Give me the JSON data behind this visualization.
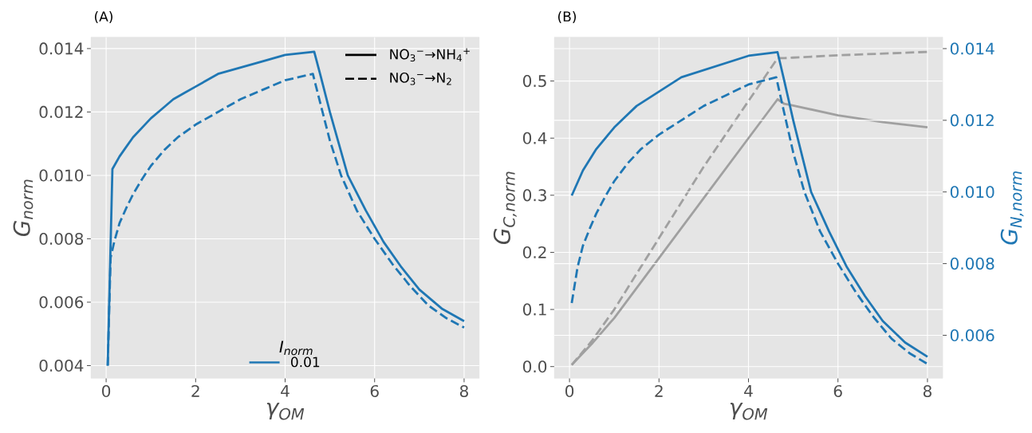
{
  "chart_data": [
    {
      "type": "line",
      "title": "(A)",
      "xlabel": "γ$_{OM}$",
      "ylabel": "G$_{norm}$",
      "xlim": [
        -0.34,
        8.34
      ],
      "ylim": [
        0.0036,
        0.01436
      ],
      "xticks": [
        0,
        2,
        4,
        6,
        8
      ],
      "yticks": [
        0.004,
        0.006,
        0.008,
        {
          "value": 0.01,
          "label": "0.010"
        },
        0.012,
        0.014
      ],
      "grid": true,
      "legend": "bottom",
      "legend_title": "I$_{norm}$",
      "annotations": [
        "NO$_{3}$$^{−}$→NH$_{4}$$^{+}$",
        "NO$_{3}$$^{−}$→N$_{2}$"
      ],
      "series": [
        {
          "name": "0.01",
          "color": "#1f77b4",
          "line_style": "solid",
          "x": [
            0.035,
            0.14,
            0.3,
            0.45,
            0.6,
            0.8,
            1.0,
            1.25,
            1.5,
            1.75,
            2.0,
            2.5,
            3.0,
            3.5,
            4.0,
            4.65,
            4.8,
            5.0,
            5.2,
            5.4,
            5.8,
            6.2,
            6.6,
            7.0,
            7.5,
            8.0
          ],
          "values": [
            0.004,
            0.0102,
            0.0106,
            0.0109,
            0.0112,
            0.0115,
            0.0118,
            0.0121,
            0.0124,
            0.0126,
            0.0128,
            0.0132,
            0.0134,
            0.0136,
            0.0138,
            0.0139,
            0.0131,
            0.012,
            0.011,
            0.01,
            0.0089,
            0.0079,
            0.0071,
            0.0064,
            0.0058,
            0.0054
          ]
        },
        {
          "color": "#1f77b4",
          "line_style": "dashed",
          "x": [
            0.035,
            0.1,
            0.18,
            0.3,
            0.46,
            0.6,
            0.81,
            1.0,
            1.3,
            1.6,
            2.0,
            2.5,
            3.0,
            3.5,
            4.0,
            4.62,
            4.8,
            5.0,
            5.25,
            5.6,
            6.0,
            6.4,
            6.8,
            7.2,
            7.6,
            8.0
          ],
          "values": [
            0.004,
            0.0074,
            0.0079,
            0.0085,
            0.009,
            0.0094,
            0.0099,
            0.0103,
            0.0108,
            0.0112,
            0.0116,
            0.012,
            0.0124,
            0.0127,
            0.013,
            0.0132,
            0.0122,
            0.0111,
            0.01,
            0.0089,
            0.008,
            0.0072,
            0.0065,
            0.0059,
            0.0055,
            0.0052
          ]
        }
      ]
    },
    {
      "type": "line",
      "title": "(B)",
      "xlabel": "γ$_{OM}$",
      "ylabel": "G$_{C,norm}$",
      "y2label": "G$_{N,norm}$",
      "xlim": [
        -0.34,
        8.34
      ],
      "ylim": [
        -0.0205,
        0.5768
      ],
      "y2lim": [
        0.0048,
        0.01432
      ],
      "xticks": [
        0,
        2,
        4,
        6,
        8
      ],
      "yticks": [
        {
          "value": 0,
          "label": "0.0"
        },
        0.1,
        0.2,
        0.3,
        0.4,
        0.5
      ],
      "y2ticks": [
        0.006,
        0.008,
        {
          "value": 0.01,
          "label": "0.010"
        },
        0.012,
        0.014
      ],
      "grid": true,
      "series": [
        {
          "color": "#a0a0a0",
          "line_style": "solid",
          "x": [
            0.05,
            0.5,
            1.0,
            2.0,
            3.0,
            4.0,
            4.65,
            4.8,
            5.0,
            6.0,
            7.0,
            8.0
          ],
          "values": [
            0.003,
            0.04,
            0.085,
            0.19,
            0.295,
            0.4,
            0.468,
            0.46,
            0.457,
            0.44,
            0.428,
            0.419
          ]
        },
        {
          "color": "#a0a0a0",
          "line_style": "dashed",
          "x": [
            0.05,
            0.5,
            1.0,
            2.0,
            3.0,
            4.0,
            4.65,
            4.8,
            5.0,
            6.0,
            7.0,
            8.0
          ],
          "values": [
            0.003,
            0.045,
            0.1,
            0.225,
            0.35,
            0.465,
            0.54,
            0.54,
            0.541,
            0.545,
            0.548,
            0.551
          ]
        },
        {
          "color": "#1f77b4",
          "line_style": "solid",
          "axis": "y2",
          "x": [
            0.05,
            0.3,
            0.45,
            0.6,
            0.8,
            1.0,
            1.25,
            1.5,
            1.75,
            2.0,
            2.5,
            3.0,
            3.5,
            4.0,
            4.65,
            4.8,
            5.0,
            5.2,
            5.4,
            5.8,
            6.2,
            6.6,
            7.0,
            7.5,
            8.0
          ],
          "values": [
            0.0099,
            0.0106,
            0.0109,
            0.0112,
            0.0115,
            0.0118,
            0.0121,
            0.0124,
            0.0126,
            0.0128,
            0.0132,
            0.0134,
            0.0136,
            0.0138,
            0.0139,
            0.0131,
            0.012,
            0.011,
            0.01,
            0.0089,
            0.0079,
            0.0071,
            0.0064,
            0.0058,
            0.0054
          ]
        },
        {
          "color": "#1f77b4",
          "line_style": "dashed",
          "axis": "y2",
          "x": [
            0.05,
            0.18,
            0.3,
            0.46,
            0.6,
            0.81,
            1.0,
            1.3,
            1.6,
            2.0,
            2.5,
            3.0,
            3.5,
            4.0,
            4.62,
            4.8,
            5.0,
            5.25,
            5.6,
            6.0,
            6.4,
            6.8,
            7.2,
            7.6,
            8.0
          ],
          "values": [
            0.0069,
            0.0079,
            0.0085,
            0.009,
            0.0094,
            0.0099,
            0.0103,
            0.0108,
            0.0112,
            0.0116,
            0.012,
            0.0124,
            0.0127,
            0.013,
            0.0132,
            0.0122,
            0.0111,
            0.01,
            0.0089,
            0.008,
            0.0072,
            0.0065,
            0.0059,
            0.0055,
            0.0052
          ]
        }
      ]
    }
  ]
}
